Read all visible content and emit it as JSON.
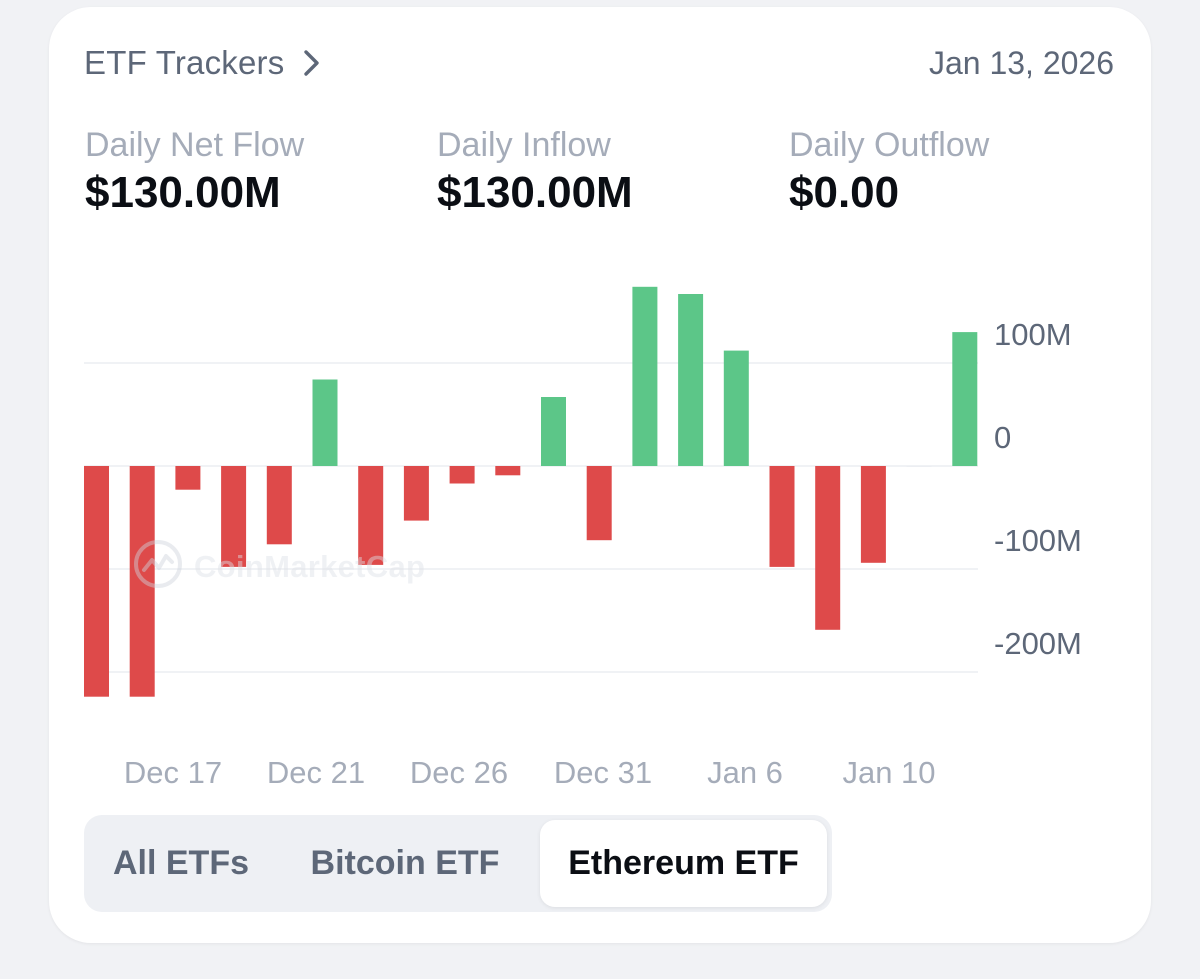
{
  "header": {
    "title": "ETF Trackers",
    "date": "Jan 13, 2026"
  },
  "stats": [
    {
      "label": "Daily Net Flow",
      "value": "$130.00M"
    },
    {
      "label": "Daily Inflow",
      "value": "$130.00M"
    },
    {
      "label": "Daily Outflow",
      "value": "$0.00"
    }
  ],
  "watermark": "CoinMarketCap",
  "tabs": [
    {
      "label": "All ETFs",
      "active": false
    },
    {
      "label": "Bitcoin ETF",
      "active": false
    },
    {
      "label": "Ethereum ETF",
      "active": true
    }
  ],
  "colors": {
    "positive": "#5cc688",
    "negative": "#de4a4a",
    "grid": "#eceef2",
    "axis_text": "#5d6778",
    "x_text": "#a5acb9"
  },
  "chart_data": {
    "type": "bar",
    "ylim": [
      -260,
      175
    ],
    "yticks": [
      100,
      0,
      -100,
      -200
    ],
    "ytick_labels": [
      "100M",
      "0",
      "-100M",
      "-200M"
    ],
    "xtick_labels": [
      "Dec 17",
      "Dec 21",
      "Dec 26",
      "Dec 31",
      "Jan 6",
      "Jan 10"
    ],
    "grid": true,
    "series": [
      {
        "values": [
          -224,
          -224,
          -23,
          -98,
          -76,
          84,
          -96,
          -53,
          -17,
          -9,
          67,
          -72,
          174,
          167,
          112,
          -98,
          -159,
          -94,
          0,
          130
        ]
      }
    ]
  }
}
